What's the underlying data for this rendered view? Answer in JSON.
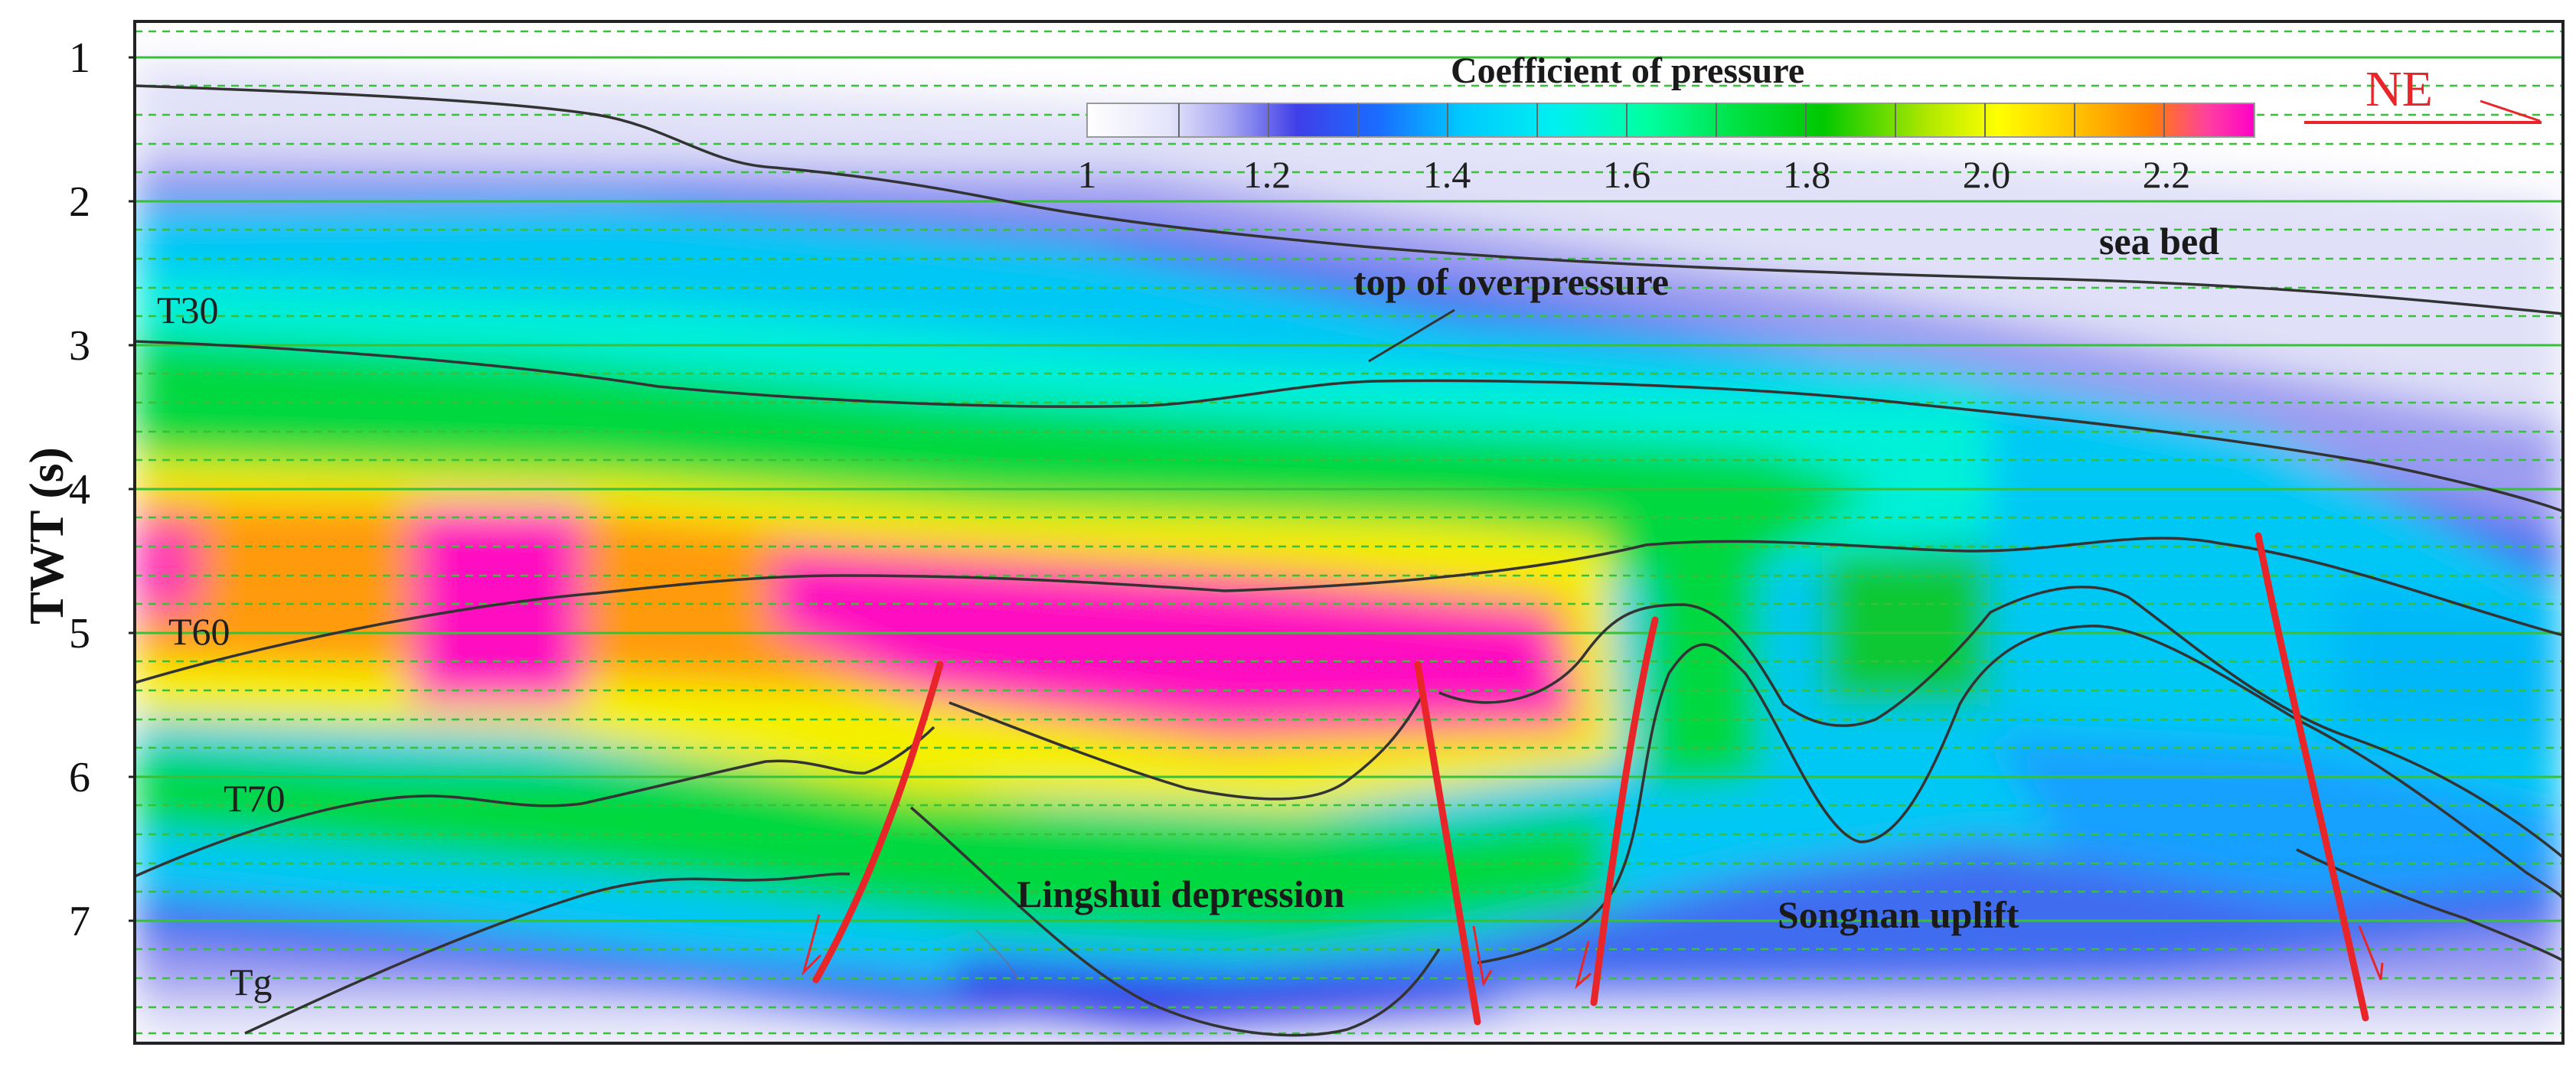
{
  "figure": {
    "ylabel": "TWT (s)",
    "yticks": [
      "1",
      "2",
      "3",
      "4",
      "5",
      "6",
      "7"
    ],
    "colorbar": {
      "title": "Coefficient of pressure",
      "ticks": [
        "1",
        "1.2",
        "1.4",
        "1.6",
        "1.8",
        "2.0",
        "2.2"
      ],
      "range": [
        1.0,
        2.3
      ],
      "colors": [
        "#ffffff",
        "#e6e6fb",
        "#a8a8f2",
        "#4a4ae8",
        "#1a6dff",
        "#00c8ff",
        "#00f0f0",
        "#00ffa0",
        "#00e040",
        "#00c800",
        "#b0e800",
        "#ffff00",
        "#ffc000",
        "#ff8000",
        "#ff40a0",
        "#ff00c8"
      ]
    },
    "direction_label": "NE",
    "horizon_labels": [
      "T30",
      "T60",
      "T70",
      "Tg"
    ],
    "annotations": {
      "sea_bed": "sea bed",
      "top_overpressure": "top of overpressure",
      "lingshui": "Lingshui depression",
      "songnan": "Songnan uplift"
    },
    "fault_color": "#e8262a",
    "grid_color": "#38c038"
  }
}
